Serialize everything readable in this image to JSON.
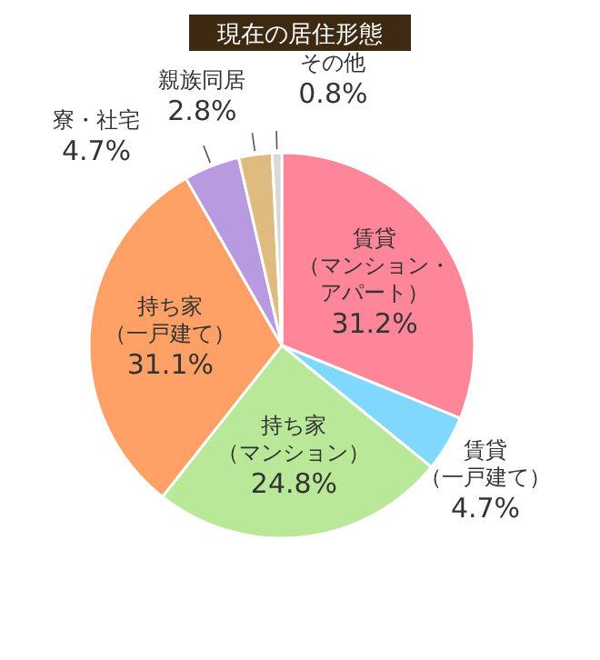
{
  "chart_data": {
    "type": "pie",
    "title": "現在の居住形態",
    "categories": [
      "賃貸（マンション・アパート）",
      "賃貸（一戸建て）",
      "持ち家（マンション）",
      "持ち家（一戸建て）",
      "寮・社宅",
      "親族同居",
      "その他"
    ],
    "values": [
      31.2,
      4.7,
      24.8,
      31.1,
      4.7,
      2.8,
      0.8
    ],
    "colors": [
      "#ff8599",
      "#80d8ff",
      "#b8e898",
      "#ffa066",
      "#b89ae0",
      "#e0bb80",
      "#d8d8d8"
    ],
    "value_labels": [
      "31.2%",
      "4.7%",
      "24.8%",
      "31.1%",
      "4.7%",
      "2.8%",
      "0.8%"
    ],
    "legend": false
  }
}
